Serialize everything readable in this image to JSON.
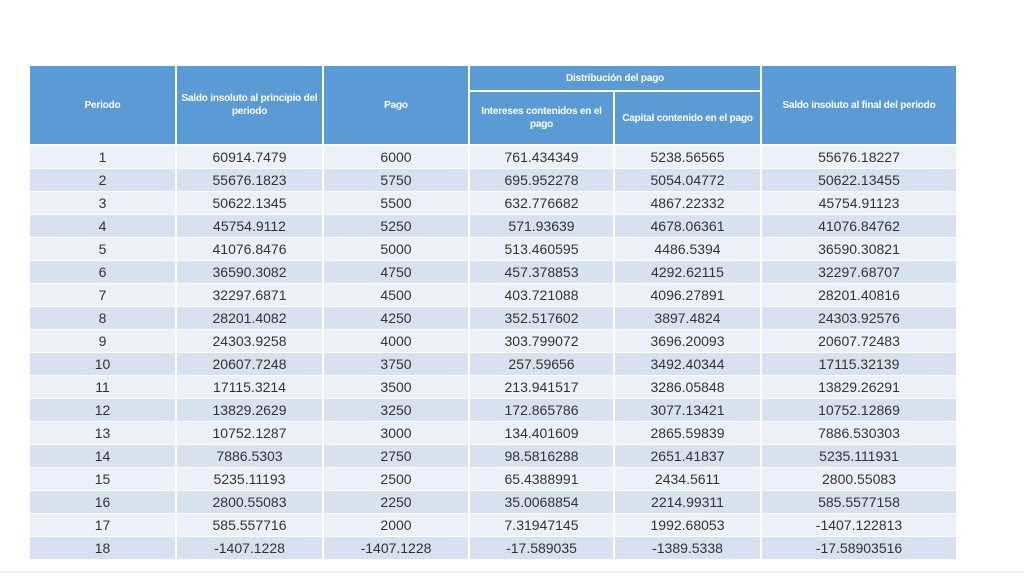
{
  "colors": {
    "header_bg": "#5B9BD5",
    "header_text": "#FFFFFF",
    "row_band_light": "#ECF1F9",
    "row_band_dark": "#D8E1F0",
    "data_text": "#333333"
  },
  "chart_data": {
    "type": "table",
    "title": "",
    "header": {
      "periodo": "Periodo",
      "saldo_inicial": "Saldo insoluto al principio del periodo",
      "pago": "Pago",
      "distribucion_group": "Distribución del pago",
      "intereses": "Intereses contenidos en el pago",
      "capital": "Capital contenido en el pago",
      "saldo_final": "Saldo insoluto al final del periodo"
    },
    "columns": [
      "Periodo",
      "Saldo insoluto al principio del periodo",
      "Pago",
      "Intereses contenidos en el pago",
      "Capital contenido en el pago",
      "Saldo insoluto al final del periodo"
    ],
    "column_groups": [
      {
        "label": "Distribución del pago",
        "columns": [
          "Intereses contenidos en el pago",
          "Capital contenido en el pago"
        ]
      }
    ],
    "rows": [
      [
        1,
        60914.7479,
        6000,
        761.434349,
        5238.56565,
        55676.18227
      ],
      [
        2,
        55676.1823,
        5750,
        695.952278,
        5054.04772,
        50622.13455
      ],
      [
        3,
        50622.1345,
        5500,
        632.776682,
        4867.22332,
        45754.91123
      ],
      [
        4,
        45754.9112,
        5250,
        571.93639,
        4678.06361,
        41076.84762
      ],
      [
        5,
        41076.8476,
        5000,
        513.460595,
        4486.5394,
        36590.30821
      ],
      [
        6,
        36590.3082,
        4750,
        457.378853,
        4292.62115,
        32297.68707
      ],
      [
        7,
        32297.6871,
        4500,
        403.721088,
        4096.27891,
        28201.40816
      ],
      [
        8,
        28201.4082,
        4250,
        352.517602,
        3897.4824,
        24303.92576
      ],
      [
        9,
        24303.9258,
        4000,
        303.799072,
        3696.20093,
        20607.72483
      ],
      [
        10,
        20607.7248,
        3750,
        257.59656,
        3492.40344,
        17115.32139
      ],
      [
        11,
        17115.3214,
        3500,
        213.941517,
        3286.05848,
        13829.26291
      ],
      [
        12,
        13829.2629,
        3250,
        172.865786,
        3077.13421,
        10752.12869
      ],
      [
        13,
        10752.1287,
        3000,
        134.401609,
        2865.59839,
        7886.530303
      ],
      [
        14,
        7886.5303,
        2750,
        98.5816288,
        2651.41837,
        5235.111931
      ],
      [
        15,
        5235.11193,
        2500,
        65.4388991,
        2434.5611,
        2800.55083
      ],
      [
        16,
        2800.55083,
        2250,
        35.0068854,
        2214.99311,
        585.5577158
      ],
      [
        17,
        585.557716,
        2000,
        7.31947145,
        1992.68053,
        -1407.122813
      ],
      [
        18,
        -1407.1228,
        -1407.1228,
        -17.589035,
        -1389.5338,
        -17.58903516
      ]
    ]
  }
}
